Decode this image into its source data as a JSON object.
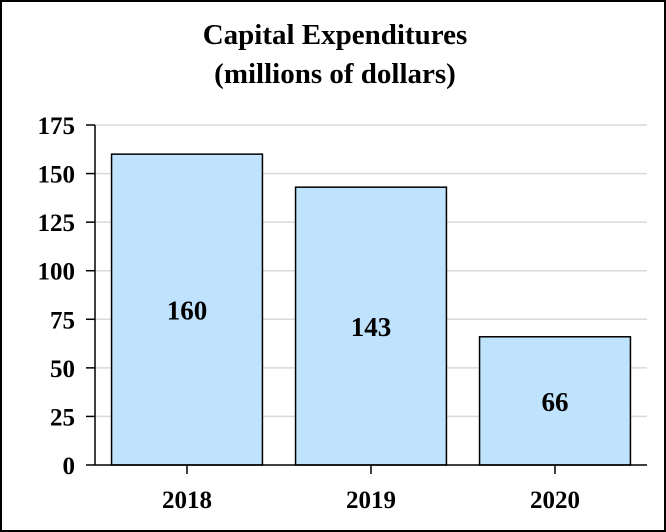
{
  "chart_data": {
    "type": "bar",
    "title": [
      "Capital Expenditures",
      "(millions of dollars)"
    ],
    "categories": [
      "2018",
      "2019",
      "2020"
    ],
    "values": [
      160,
      143,
      66
    ],
    "value_labels": [
      "160",
      "143",
      "66"
    ],
    "xlabel": "",
    "ylabel": "",
    "ylim": [
      0,
      175
    ],
    "yticks": [
      "0",
      "25",
      "50",
      "75",
      "100",
      "125",
      "150",
      "175"
    ],
    "ytick_values": [
      0,
      25,
      50,
      75,
      100,
      125,
      150,
      175
    ],
    "grid": true,
    "legend": "none"
  },
  "colors": {
    "bar_fill": "#bfe3fc",
    "bar_stroke": "#000000",
    "grid": "#d9d9d9",
    "axis": "#000000"
  }
}
